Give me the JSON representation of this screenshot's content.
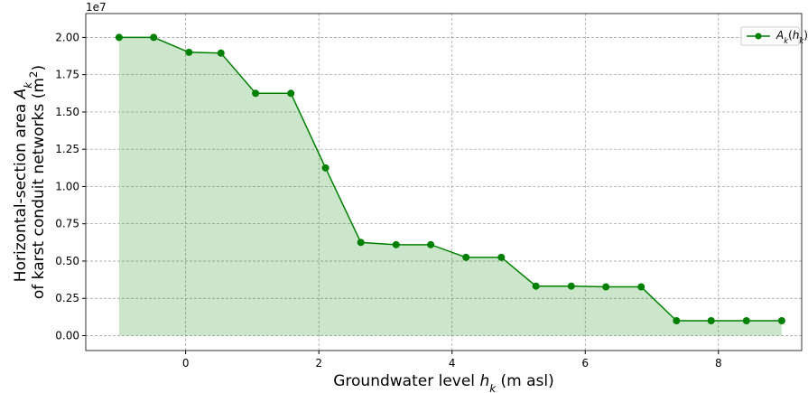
{
  "chart_data": {
    "type": "area_line",
    "xlabel": "Groundwater level h_k (m asl)",
    "ylabel": [
      "Horizontal-section area A_k",
      "of karst conduit networks (m^2)"
    ],
    "y_offset_label": "1e7",
    "x": [
      -1,
      -0.48,
      0.05,
      0.53,
      1.05,
      1.58,
      2.1,
      2.63,
      3.16,
      3.68,
      4.21,
      4.74,
      5.26,
      5.79,
      6.31,
      6.84,
      7.37,
      7.89,
      8.42,
      8.95
    ],
    "series": [
      {
        "name": "A_k(h_k)",
        "color": "#008000",
        "values": [
          2.0,
          2.0,
          1.9,
          1.895,
          1.625,
          1.625,
          1.125,
          0.625,
          0.61,
          0.61,
          0.525,
          0.525,
          0.332,
          0.332,
          0.327,
          0.327,
          0.1,
          0.1,
          0.1,
          0.1
        ]
      }
    ],
    "xlim": [
      -1.5,
      9.25
    ],
    "ylim": [
      -0.1,
      2.16
    ],
    "xticks": [
      0,
      2,
      4,
      6,
      8
    ],
    "yticks": [
      {
        "value": 0,
        "label": "0.00"
      },
      {
        "value": 0.25,
        "label": "0.25"
      },
      {
        "value": 0.5,
        "label": "0.50"
      },
      {
        "value": 0.75,
        "label": "0.75"
      },
      {
        "value": 1,
        "label": "1.00"
      },
      {
        "value": 1.25,
        "label": "1.25"
      },
      {
        "value": 1.5,
        "label": "1.50"
      },
      {
        "value": 1.75,
        "label": "1.75"
      },
      {
        "value": 2,
        "label": "2.00"
      }
    ],
    "grid": true,
    "legend": "upper right"
  }
}
